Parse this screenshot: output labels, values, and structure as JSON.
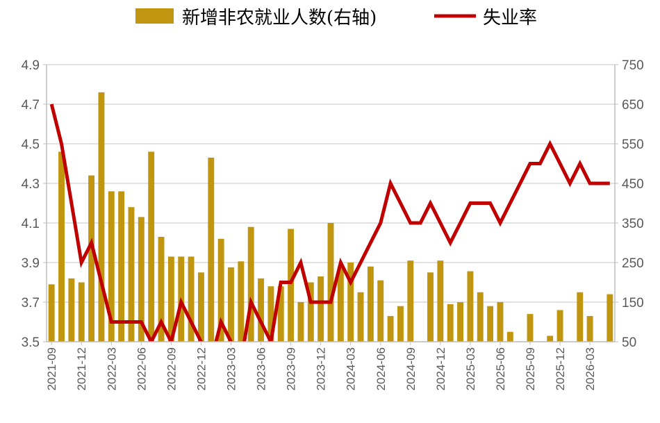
{
  "chart_data": {
    "type": "bar+line",
    "legend": [
      {
        "label": "新增非农就业人数(右轴)",
        "kind": "bar",
        "color": "#c09510"
      },
      {
        "label": "失业率",
        "kind": "line",
        "color": "#c00000"
      }
    ],
    "legend_position": "top",
    "grid": true,
    "x_tick_labels": [
      "2021-09",
      "2021-12",
      "2022-03",
      "2022-06",
      "2022-09",
      "2022-12",
      "2023-03",
      "2023-06",
      "2023-09",
      "2023-12",
      "2024-03",
      "2024-06",
      "2024-09",
      "2024-12",
      "2025-03",
      "2025-06",
      "2025-09",
      "2025-12",
      "2026-03"
    ],
    "x_tick_step_months": 3,
    "left_axis": {
      "series": "失业率",
      "min": 3.5,
      "max": 4.9,
      "ticks": [
        "3.5",
        "3.7",
        "3.9",
        "4.1",
        "4.3",
        "4.5",
        "4.7",
        "4.9"
      ]
    },
    "right_axis": {
      "series": "新增非农就业人数(右轴)",
      "min": 50,
      "max": 750,
      "ticks": [
        "50",
        "150",
        "250",
        "350",
        "450",
        "550",
        "650",
        "750"
      ]
    },
    "categories": [
      "2021-09",
      "2021-10",
      "2021-11",
      "2021-12",
      "2022-01",
      "2022-02",
      "2022-03",
      "2022-04",
      "2022-05",
      "2022-06",
      "2022-07",
      "2022-08",
      "2022-09",
      "2022-10",
      "2022-11",
      "2022-12",
      "2023-01",
      "2023-02",
      "2023-03",
      "2023-04",
      "2023-05",
      "2023-06",
      "2023-07",
      "2023-08",
      "2023-09",
      "2023-10",
      "2023-11",
      "2023-12",
      "2024-01",
      "2024-02",
      "2024-03",
      "2024-04",
      "2024-05",
      "2024-06",
      "2024-07",
      "2024-08",
      "2024-09",
      "2024-10",
      "2024-11",
      "2024-12",
      "2025-01",
      "2025-02",
      "2025-03",
      "2025-04",
      "2025-05",
      "2025-06",
      "2025-07",
      "2025-08",
      "2025-09",
      "2025-10",
      "2025-11",
      "2025-12",
      "2026-01",
      "2026-02",
      "2026-03",
      "2026-04",
      "2026-05"
    ],
    "series": [
      {
        "name": "新增非农就业人数(右轴)",
        "type": "bar",
        "axis": "right",
        "values": [
          195,
          530,
          210,
          200,
          470,
          680,
          430,
          430,
          390,
          365,
          530,
          315,
          265,
          265,
          265,
          225,
          515,
          310,
          238,
          253,
          340,
          210,
          190,
          190,
          335,
          150,
          200,
          215,
          350,
          240,
          250,
          175,
          240,
          205,
          115,
          140,
          255,
          40,
          225,
          255,
          145,
          150,
          228,
          175,
          140,
          150,
          75,
          45,
          120,
          45,
          65,
          130,
          45,
          175,
          115,
          45,
          170
        ]
      },
      {
        "name": "失业率",
        "type": "line",
        "axis": "left",
        "values": [
          4.7,
          4.5,
          4.2,
          3.9,
          4.0,
          3.8,
          3.6,
          3.6,
          3.6,
          3.6,
          3.5,
          3.6,
          3.5,
          3.7,
          3.6,
          3.5,
          3.4,
          3.6,
          3.5,
          3.4,
          3.7,
          3.6,
          3.5,
          3.8,
          3.8,
          3.9,
          3.7,
          3.7,
          3.7,
          3.9,
          3.8,
          3.9,
          4.0,
          4.1,
          4.3,
          4.2,
          4.1,
          4.1,
          4.2,
          4.1,
          4.0,
          4.1,
          4.2,
          4.2,
          4.2,
          4.1,
          4.2,
          4.3,
          4.4,
          4.4,
          4.5,
          4.4,
          4.3,
          4.4,
          4.3,
          4.3,
          4.3
        ]
      }
    ]
  }
}
